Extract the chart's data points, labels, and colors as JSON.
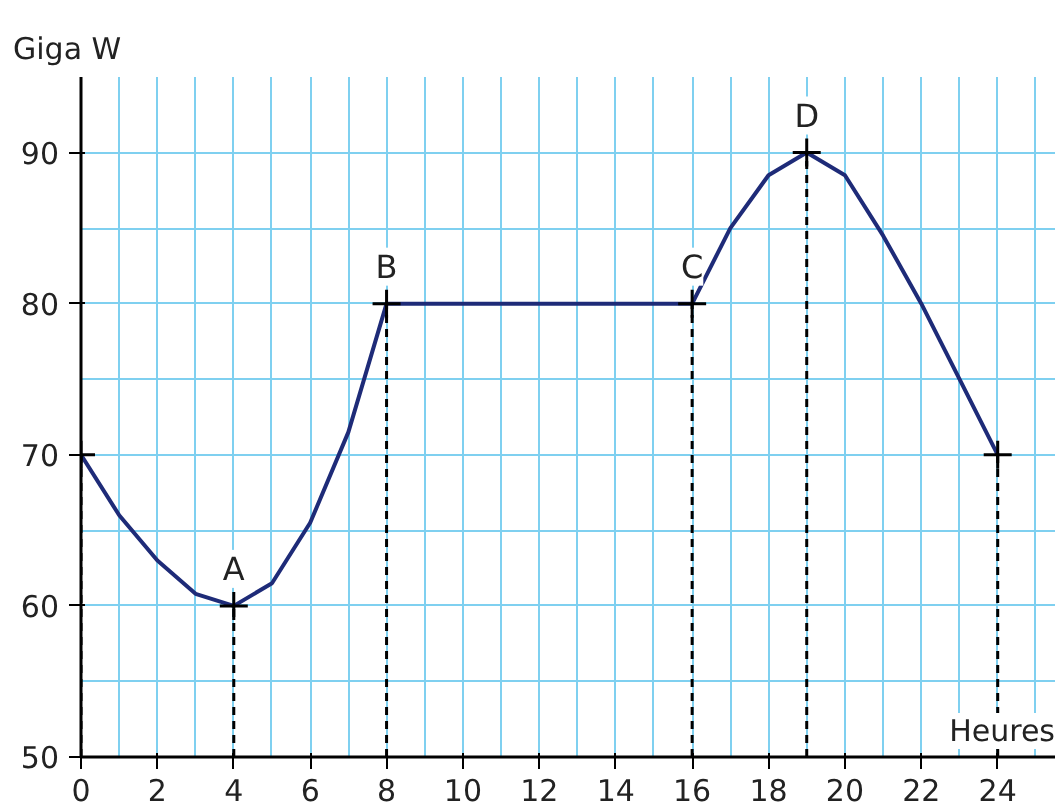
{
  "chart_data": {
    "type": "line",
    "xlabel": "Heures",
    "ylabel": "Giga W",
    "xlim": [
      0,
      25.5
    ],
    "ylim": [
      50,
      95
    ],
    "xticks": [
      0,
      2,
      4,
      6,
      8,
      10,
      12,
      14,
      16,
      18,
      20,
      22,
      24
    ],
    "yticks": [
      50,
      60,
      70,
      80,
      90
    ],
    "grid": true,
    "series": [
      {
        "color": "#1e2b78",
        "line_style": "solid",
        "marker": "none",
        "x": [
          0,
          1,
          2,
          3,
          4,
          5,
          6,
          7,
          8,
          9,
          10,
          11,
          12,
          13,
          14,
          15,
          16,
          17,
          18,
          19,
          20,
          21,
          22,
          23,
          24
        ],
        "values": [
          70,
          66,
          63,
          60.8,
          60,
          61.5,
          65.5,
          71.5,
          80,
          80,
          80,
          80,
          80,
          80,
          80,
          80,
          80,
          85,
          88.5,
          90,
          88.5,
          84.5,
          80,
          75,
          70
        ]
      },
      {
        "type": "lollipop",
        "color": "#000000",
        "line_style": "dashed",
        "marker": "cross",
        "x": [
          0,
          4,
          8,
          16,
          19,
          24
        ],
        "values": [
          70,
          60,
          80,
          80,
          90,
          70
        ]
      }
    ],
    "annotations": [
      {
        "text": "A",
        "x": 4,
        "y": 60
      },
      {
        "text": "B",
        "x": 8,
        "y": 80
      },
      {
        "text": "C",
        "x": 16,
        "y": 80
      },
      {
        "text": "D",
        "x": 19,
        "y": 90
      }
    ]
  }
}
